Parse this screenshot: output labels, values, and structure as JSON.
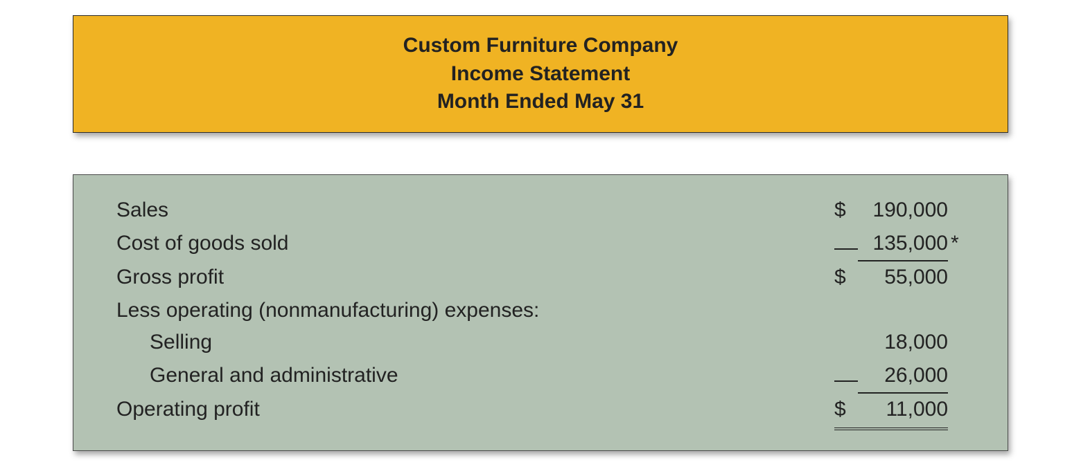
{
  "header": {
    "company": "Custom Furniture Company",
    "statement": "Income Statement",
    "period": "Month Ended May 31",
    "bg_color": "#f0b323",
    "border_color": "#2b2b2b",
    "text_color": "#222222",
    "font_size": 30,
    "font_weight": 700
  },
  "body": {
    "bg_color": "#b3c2b3",
    "border_color": "#4a4a4a",
    "text_color": "#222222",
    "font_size": 30
  },
  "statement": {
    "type": "table",
    "rows": [
      {
        "label": "Sales",
        "currency": "$",
        "value": "190,000",
        "note": "",
        "indent": false,
        "rule": "none"
      },
      {
        "label": "Cost of goods sold",
        "currency": "",
        "value": "135,000",
        "note": "*",
        "indent": false,
        "rule": "underline"
      },
      {
        "label": "Gross profit",
        "currency": "$",
        "value": "55,000",
        "note": "",
        "indent": false,
        "rule": "none"
      },
      {
        "label": "Less operating (nonmanufacturing) expenses:",
        "currency": "",
        "value": "",
        "note": "",
        "indent": false,
        "rule": "none"
      },
      {
        "label": "Selling",
        "currency": "",
        "value": "18,000",
        "note": "",
        "indent": true,
        "rule": "none"
      },
      {
        "label": "General and administrative",
        "currency": "",
        "value": "26,000",
        "note": "",
        "indent": true,
        "rule": "underline"
      },
      {
        "label": "Operating profit",
        "currency": "$",
        "value": "11,000",
        "note": "",
        "indent": false,
        "rule": "double"
      }
    ]
  }
}
